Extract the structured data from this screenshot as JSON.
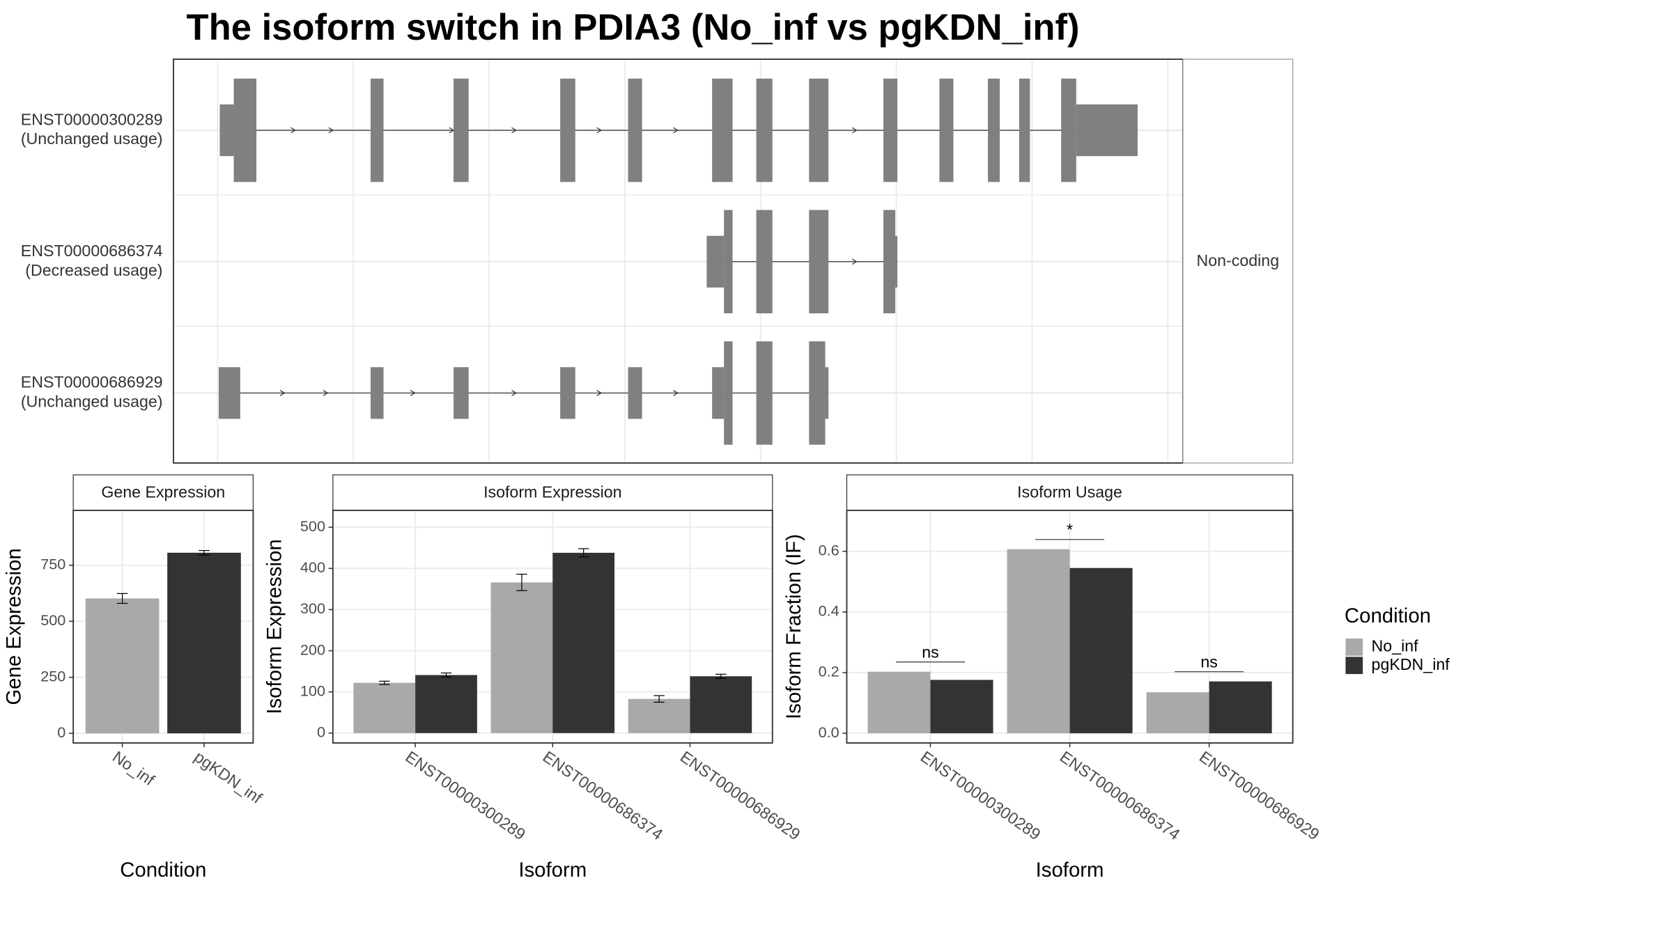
{
  "chart_data": [
    {
      "type": "transcript_structure",
      "title": "The isoform switch in PDIA3 (No_inf vs pgKDN_inf)",
      "strip": "Non-coding",
      "transcripts": [
        {
          "id": "ENST00000300289",
          "usage": "(Unchanged usage)"
        },
        {
          "id": "ENST00000686374",
          "usage": "(Decreased usage)"
        },
        {
          "id": "ENST00000686929",
          "usage": "(Unchanged usage)"
        }
      ]
    },
    {
      "type": "bar",
      "title": "Gene Expression",
      "x_label": "Condition",
      "y_label": "Gene Expression",
      "categories": [
        "No_inf",
        "pgKDN_inf"
      ],
      "series": [
        {
          "name": "No_inf",
          "color": "#a9a9a9",
          "values": [
            602,
            null
          ],
          "errors": [
            22,
            null
          ]
        },
        {
          "name": "pgKDN_inf",
          "color": "#333333",
          "values": [
            null,
            806
          ],
          "errors": [
            null,
            10
          ]
        }
      ],
      "ylim": [
        -43,
        995
      ],
      "yticks": [
        0,
        250,
        500,
        750
      ],
      "grid": true
    },
    {
      "type": "bar",
      "title": "Isoform Expression",
      "x_label": "Isoform",
      "y_label": "Isoform Expression",
      "categories": [
        "ENST00000300289",
        "ENST00000686374",
        "ENST00000686929"
      ],
      "series": [
        {
          "name": "No_inf",
          "color": "#a9a9a9",
          "values": [
            122,
            366,
            83
          ],
          "errors": [
            4,
            20,
            8
          ]
        },
        {
          "name": "pgKDN_inf",
          "color": "#333333",
          "values": [
            141,
            438,
            138
          ],
          "errors": [
            5,
            10,
            5
          ]
        }
      ],
      "ylim": [
        -24,
        541
      ],
      "yticks": [
        0,
        100,
        200,
        300,
        400,
        500
      ],
      "grid": true
    },
    {
      "type": "bar",
      "title": "Isoform Usage",
      "x_label": "Isoform",
      "y_label": "Isoform Fraction (IF)",
      "categories": [
        "ENST00000300289",
        "ENST00000686374",
        "ENST00000686929"
      ],
      "series": [
        {
          "name": "No_inf",
          "color": "#a9a9a9",
          "values": [
            0.203,
            0.607,
            0.135
          ]
        },
        {
          "name": "pgKDN_inf",
          "color": "#333333",
          "values": [
            0.176,
            0.545,
            0.171
          ]
        }
      ],
      "annotations": [
        "ns",
        "*",
        "ns"
      ],
      "ylim": [
        -0.032,
        0.735
      ],
      "yticks": [
        0.0,
        0.2,
        0.4,
        0.6
      ],
      "grid": true,
      "legend_title": "Condition",
      "legend": "right"
    }
  ]
}
